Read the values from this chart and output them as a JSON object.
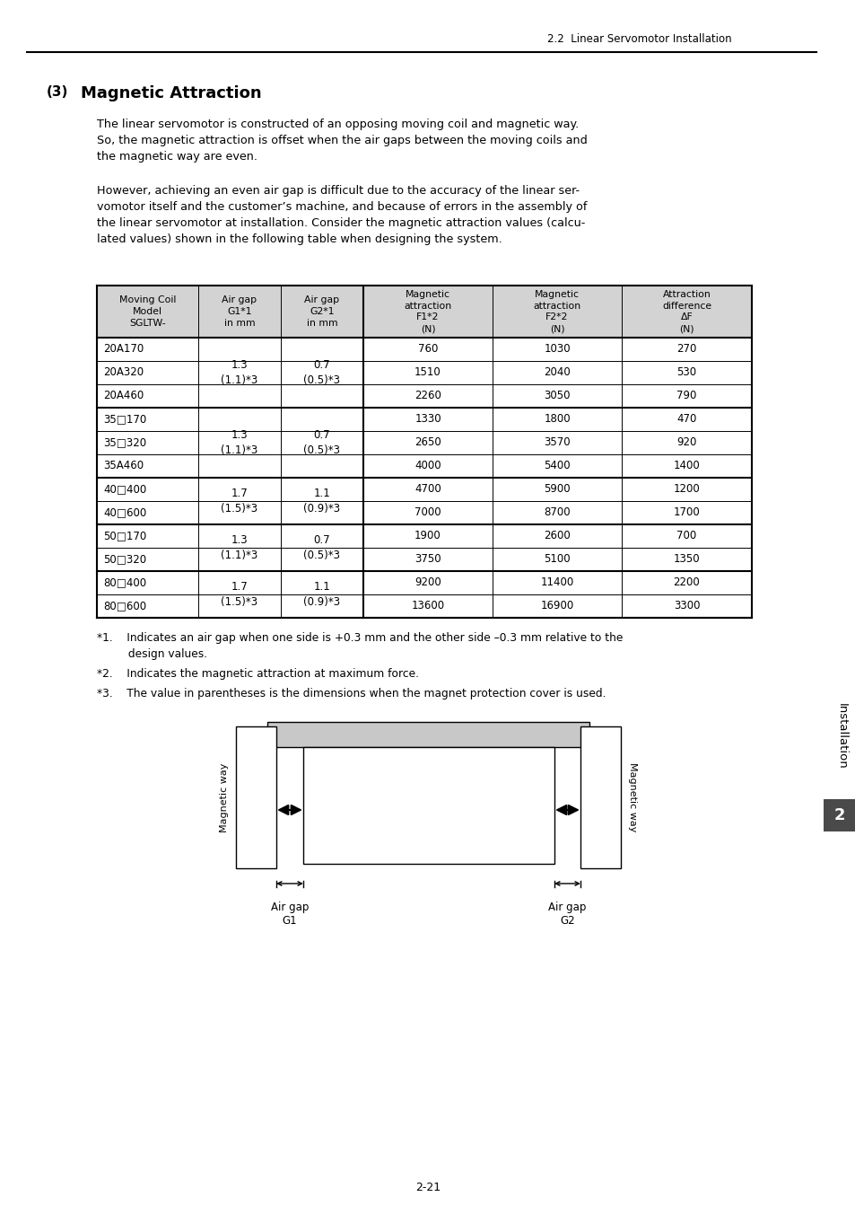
{
  "page_header": "2.2  Linear Servomotor Installation",
  "para1": "The linear servomotor is constructed of an opposing moving coil and magnetic way.\nSo, the magnetic attraction is offset when the air gaps between the moving coils and\nthe magnetic way are even.",
  "para2": "However, achieving an even air gap is difficult due to the accuracy of the linear ser-\nvomotor itself and the customer’s machine, and because of errors in the assembly of\nthe linear servomotor at installation. Consider the magnetic attraction values (calcu-\nlated values) shown in the following table when designing the system.",
  "table_header": [
    "Moving Coil\nModel\nSGLTW-",
    "Air gap\nG1*1\nin mm",
    "Air gap\nG2*1\nin mm",
    "Magnetic\nattraction\nF1*2\n(N)",
    "Magnetic\nattraction\nF2*2\n(N)",
    "Attraction\ndifference\nΔF\n(N)"
  ],
  "table_data": [
    [
      "20A170",
      "760",
      "1030",
      "270"
    ],
    [
      "20A320",
      "1510",
      "2040",
      "530"
    ],
    [
      "20A460",
      "2260",
      "3050",
      "790"
    ],
    [
      "35□170",
      "1330",
      "1800",
      "470"
    ],
    [
      "35□320",
      "2650",
      "3570",
      "920"
    ],
    [
      "35A460",
      "4000",
      "5400",
      "1400"
    ],
    [
      "40□400",
      "4700",
      "5900",
      "1200"
    ],
    [
      "40□600",
      "7000",
      "8700",
      "1700"
    ],
    [
      "50□170",
      "1900",
      "2600",
      "700"
    ],
    [
      "50□320",
      "3750",
      "5100",
      "1350"
    ],
    [
      "80□400",
      "9200",
      "11400",
      "2200"
    ],
    [
      "80□600",
      "13600",
      "16900",
      "3300"
    ]
  ],
  "merge_groups": [
    {
      "rows": [
        0,
        1,
        2
      ],
      "col": 1,
      "text": "1.3\n(1.1)*3"
    },
    {
      "rows": [
        0,
        1,
        2
      ],
      "col": 2,
      "text": "0.7\n(0.5)*3"
    },
    {
      "rows": [
        3,
        4,
        5
      ],
      "col": 1,
      "text": "1.3\n(1.1)*3"
    },
    {
      "rows": [
        3,
        4,
        5
      ],
      "col": 2,
      "text": "0.7\n(0.5)*3"
    },
    {
      "rows": [
        6,
        7
      ],
      "col": 1,
      "text": "1.7\n(1.5)*3"
    },
    {
      "rows": [
        6,
        7
      ],
      "col": 2,
      "text": "1.1\n(0.9)*3"
    },
    {
      "rows": [
        8,
        9
      ],
      "col": 1,
      "text": "1.3\n(1.1)*3"
    },
    {
      "rows": [
        8,
        9
      ],
      "col": 2,
      "text": "0.7\n(0.5)*3"
    },
    {
      "rows": [
        10,
        11
      ],
      "col": 1,
      "text": "1.7\n(1.5)*3"
    },
    {
      "rows": [
        10,
        11
      ],
      "col": 2,
      "text": "1.1\n(0.9)*3"
    }
  ],
  "group_thick_rows": [
    0,
    3,
    6,
    8,
    10,
    12
  ],
  "footnote1": "*1.    Indicates an air gap when one side is +0.3 mm and the other side –0.3 mm relative to the\n         design values.",
  "footnote2": "*2.    Indicates the magnetic attraction at maximum force.",
  "footnote3": "*3.    The value in parentheses is the dimensions when the magnet protection cover is used.",
  "sidebar_text": "Installation",
  "sidebar_num": "2",
  "page_num": "2-21",
  "bg": "#ffffff",
  "header_gray": "#d3d3d3",
  "sidebar_dark": "#4a4a4a"
}
